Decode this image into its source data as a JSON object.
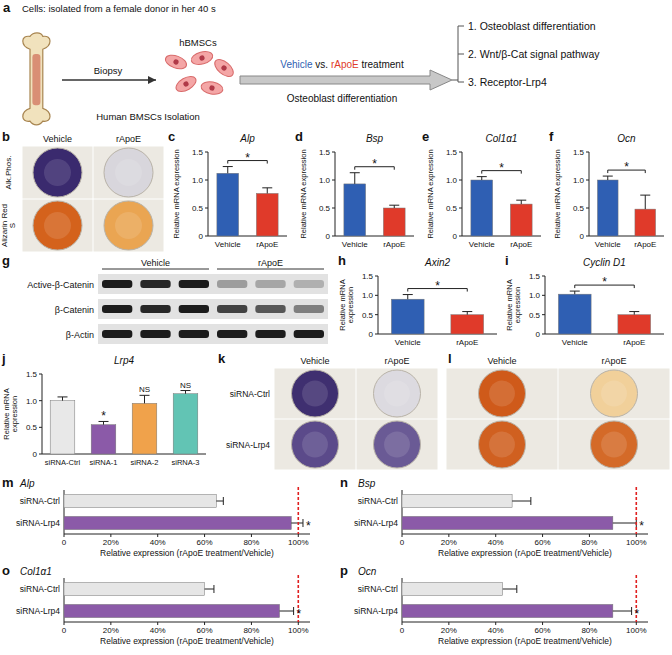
{
  "schematic": {
    "letter": "a",
    "title": "Cells: isolated from a female donor in her 40 s",
    "biopsy": "Biopsy",
    "cells": "hBMSCs",
    "isolation": "Human BMSCs Isolation",
    "treatment": [
      "Vehicle",
      "vs.",
      "rApoE",
      "treatment"
    ],
    "process": "Osteoblast differentiation",
    "outcomes": [
      "1. Osteoblast differentiation",
      "2. Wnt/β-Cat signal pathway",
      "3. Receptor-Lrp4"
    ]
  },
  "stain_b": {
    "letter": "b",
    "columns": [
      "Vehicle",
      "rApoE"
    ],
    "rows": [
      "Alk.Phos.",
      "Alizarin Red S"
    ]
  },
  "blot_g": {
    "letter": "g",
    "groups": [
      "Vehicle",
      "rApoE"
    ],
    "rows": [
      "Active-β-Catenin",
      "β-Catenin",
      "β-Actin"
    ]
  },
  "stain_k": {
    "letter": "k",
    "columns": [
      "Vehicle",
      "rApoE"
    ],
    "rows": [
      "siRNA-Ctrl",
      "siRNA-Lrp4"
    ]
  },
  "stain_l": {
    "letter": "l",
    "columns": [
      "Vehicle",
      "rApoE"
    ]
  },
  "chart_data": [
    {
      "letter": "c",
      "type": "bar",
      "title": "Alp",
      "y_label": "Relative mRNA expression",
      "categories": [
        "Vehicle",
        "rApoE"
      ],
      "values": [
        1.12,
        0.76
      ],
      "errors": [
        0.12,
        0.1
      ],
      "colors": [
        "#2f5fb3",
        "#e03a2a"
      ],
      "ylim": [
        0,
        1.5
      ],
      "yticks": [
        0,
        0.5,
        {
          "value": 1,
          "label": "1.0"
        },
        1.5
      ],
      "significance": "*"
    },
    {
      "letter": "d",
      "type": "bar",
      "title": "Bsp",
      "y_label": "Relative mRNA expression",
      "categories": [
        "Vehicle",
        "rApoE"
      ],
      "values": [
        0.93,
        0.5
      ],
      "errors": [
        0.2,
        0.05
      ],
      "colors": [
        "#2f5fb3",
        "#e03a2a"
      ],
      "ylim": [
        0,
        1.5
      ],
      "yticks": [
        0,
        0.5,
        {
          "value": 1,
          "label": "1.0"
        },
        1.5
      ],
      "significance": "*"
    },
    {
      "letter": "e",
      "type": "bar",
      "title": "Col1α1",
      "y_label": "Relative mRNA expression",
      "categories": [
        "Vehicle",
        "rApoE"
      ],
      "values": [
        1.0,
        0.57
      ],
      "errors": [
        0.06,
        0.07
      ],
      "colors": [
        "#2f5fb3",
        "#e03a2a"
      ],
      "ylim": [
        0,
        1.5
      ],
      "yticks": [
        0,
        0.5,
        {
          "value": 1,
          "label": "1.0"
        },
        1.5
      ],
      "significance": "*"
    },
    {
      "letter": "f",
      "type": "bar",
      "title": "Ocn",
      "y_label": "Relative mRNA expression",
      "categories": [
        "Vehicle",
        "rApoE"
      ],
      "values": [
        1.0,
        0.48
      ],
      "errors": [
        0.07,
        0.25
      ],
      "colors": [
        "#2f5fb3",
        "#e03a2a"
      ],
      "ylim": [
        0,
        1.5
      ],
      "yticks": [
        0,
        0.5,
        {
          "value": 1,
          "label": "1.0"
        },
        1.5
      ],
      "significance": "*"
    },
    {
      "letter": "h",
      "type": "bar",
      "title": "Axin2",
      "y_label": "Relative mRNA expression",
      "categories": [
        "Vehicle",
        "rApoE"
      ],
      "values": [
        0.9,
        0.5
      ],
      "errors": [
        0.12,
        0.08
      ],
      "colors": [
        "#2f5fb3",
        "#e03a2a"
      ],
      "ylim": [
        0,
        1.5
      ],
      "yticks": [
        0,
        0.5,
        {
          "value": 1,
          "label": "1.0"
        },
        1.5
      ],
      "significance": "*"
    },
    {
      "letter": "i",
      "type": "bar",
      "title": "Cyclin D1",
      "y_label": "Relative mRNA expression",
      "categories": [
        "Vehicle",
        "rApoE"
      ],
      "values": [
        1.03,
        0.5
      ],
      "errors": [
        0.08,
        0.08
      ],
      "colors": [
        "#2f5fb3",
        "#e03a2a"
      ],
      "ylim": [
        0,
        1.5
      ],
      "yticks": [
        0,
        0.5,
        {
          "value": 1,
          "label": "1.0"
        },
        1.5
      ],
      "significance": "*"
    },
    {
      "letter": "j",
      "type": "bar",
      "title": "Lrp4",
      "y_label": "Relative mRNA expression",
      "categories": [
        "siRNA-Ctrl",
        "siRNA-1",
        "siRNA-2",
        "siRNA-3"
      ],
      "values": [
        1.0,
        0.55,
        0.95,
        1.13
      ],
      "errors": [
        0.07,
        0.06,
        0.15,
        0.06
      ],
      "colors": [
        "#e8e8e8",
        "#8b5aa8",
        "#f0a24b",
        "#62c4b4"
      ],
      "ylim": [
        0,
        1.5
      ],
      "yticks": [
        0,
        0.5,
        {
          "value": 1,
          "label": "1.0"
        },
        1.5
      ],
      "bar_labels": [
        null,
        "*",
        "NS",
        "NS"
      ]
    },
    {
      "letter": "m",
      "type": "bar",
      "orientation": "horizontal",
      "title": "Alp",
      "x_label": "Relative expression (rApoE treatment/Vehicle)",
      "categories": [
        "siRNA-Ctrl",
        "siRNA-Lrp4"
      ],
      "values": [
        65,
        97
      ],
      "errors": [
        3,
        5
      ],
      "colors": [
        "#e6e6e6",
        "#8b5aa8"
      ],
      "xlim": [
        0,
        105
      ],
      "xticks": [
        0,
        {
          "value": 20,
          "label": "20%"
        },
        {
          "value": 40,
          "label": "40%"
        },
        {
          "value": 60,
          "label": "60%"
        },
        {
          "value": 80,
          "label": "80%"
        },
        {
          "value": 100,
          "label": "100%"
        }
      ],
      "reference_line": {
        "value": 100,
        "color": "#e02020"
      },
      "bar_labels": [
        null,
        "*"
      ]
    },
    {
      "letter": "n",
      "type": "bar",
      "orientation": "horizontal",
      "title": "Bsp",
      "x_label": "Relative expression (rApoE treatment/Vehicle)",
      "categories": [
        "siRNA-Ctrl",
        "siRNA-Lrp4"
      ],
      "values": [
        47,
        90
      ],
      "errors": [
        8,
        10
      ],
      "colors": [
        "#e6e6e6",
        "#8b5aa8"
      ],
      "xlim": [
        0,
        105
      ],
      "xticks": [
        0,
        {
          "value": 20,
          "label": "20%"
        },
        {
          "value": 40,
          "label": "40%"
        },
        {
          "value": 60,
          "label": "60%"
        },
        {
          "value": 80,
          "label": "80%"
        },
        {
          "value": 100,
          "label": "100%"
        }
      ],
      "reference_line": {
        "value": 100,
        "color": "#e02020"
      },
      "bar_labels": [
        null,
        "*"
      ]
    },
    {
      "letter": "o",
      "type": "bar",
      "orientation": "horizontal",
      "title": "Col1α1",
      "x_label": "Relative expression (rApoE treatment/Vehicle)",
      "categories": [
        "siRNA-Ctrl",
        "siRNA-Lrp4"
      ],
      "values": [
        60,
        92
      ],
      "errors": [
        4,
        6
      ],
      "colors": [
        "#e6e6e6",
        "#8b5aa8"
      ],
      "xlim": [
        0,
        105
      ],
      "xticks": [
        0,
        {
          "value": 20,
          "label": "20%"
        },
        {
          "value": 40,
          "label": "40%"
        },
        {
          "value": 60,
          "label": "60%"
        },
        {
          "value": 80,
          "label": "80%"
        },
        {
          "value": 100,
          "label": "100%"
        }
      ],
      "reference_line": {
        "value": 100,
        "color": "#e02020"
      },
      "bar_labels": [
        null,
        "*"
      ]
    },
    {
      "letter": "p",
      "type": "bar",
      "orientation": "horizontal",
      "title": "Ocn",
      "x_label": "Relative expression (rApoE treatment/Vehicle)",
      "categories": [
        "siRNA-Ctrl",
        "siRNA-Lrp4"
      ],
      "values": [
        43,
        90
      ],
      "errors": [
        6,
        8
      ],
      "colors": [
        "#e6e6e6",
        "#8b5aa8"
      ],
      "xlim": [
        0,
        105
      ],
      "xticks": [
        0,
        {
          "value": 20,
          "label": "20%"
        },
        {
          "value": 40,
          "label": "40%"
        },
        {
          "value": 60,
          "label": "60%"
        },
        {
          "value": 80,
          "label": "80%"
        },
        {
          "value": 100,
          "label": "100%"
        }
      ],
      "reference_line": {
        "value": 100,
        "color": "#e02020"
      },
      "bar_labels": [
        null,
        "*"
      ]
    }
  ]
}
